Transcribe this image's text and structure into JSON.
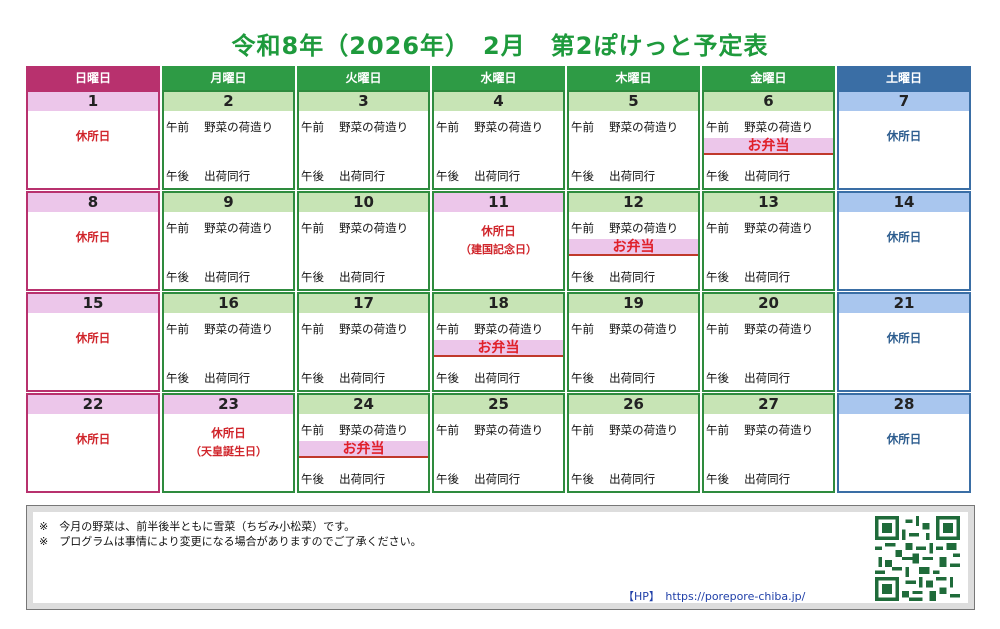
{
  "title": "令和8年（2026年）　2月　第2ぽけっと予定表",
  "headers": [
    {
      "label": "日曜日",
      "color": "#b8316e"
    },
    {
      "label": "月曜日",
      "color": "#2e9b45"
    },
    {
      "label": "火曜日",
      "color": "#2e9b45"
    },
    {
      "label": "水曜日",
      "color": "#2e9b45"
    },
    {
      "label": "木曜日",
      "color": "#2e9b45"
    },
    {
      "label": "金曜日",
      "color": "#2e9b45"
    },
    {
      "label": "土曜日",
      "color": "#3a6ea5"
    }
  ],
  "am_text": "午前　 野菜の荷造り",
  "pm_text": "午後　 出荷同行",
  "bento_text": "お弁当",
  "closed_text": "休所日",
  "weeks": [
    [
      {
        "day": "1",
        "type": "closed"
      },
      {
        "day": "2",
        "type": "work"
      },
      {
        "day": "3",
        "type": "work"
      },
      {
        "day": "4",
        "type": "work"
      },
      {
        "day": "5",
        "type": "work"
      },
      {
        "day": "6",
        "type": "work",
        "bento": true
      },
      {
        "day": "7",
        "type": "closed"
      }
    ],
    [
      {
        "day": "8",
        "type": "closed"
      },
      {
        "day": "9",
        "type": "work"
      },
      {
        "day": "10",
        "type": "work"
      },
      {
        "day": "11",
        "type": "holiday",
        "sub": "（建国記念日）"
      },
      {
        "day": "12",
        "type": "work",
        "bento": true
      },
      {
        "day": "13",
        "type": "work"
      },
      {
        "day": "14",
        "type": "closed"
      }
    ],
    [
      {
        "day": "15",
        "type": "closed"
      },
      {
        "day": "16",
        "type": "work"
      },
      {
        "day": "17",
        "type": "work"
      },
      {
        "day": "18",
        "type": "work",
        "bento": true
      },
      {
        "day": "19",
        "type": "work"
      },
      {
        "day": "20",
        "type": "work"
      },
      {
        "day": "21",
        "type": "closed"
      }
    ],
    [
      {
        "day": "22",
        "type": "closed"
      },
      {
        "day": "23",
        "type": "holiday",
        "sub": "（天皇誕生日）"
      },
      {
        "day": "24",
        "type": "work",
        "bento": true
      },
      {
        "day": "25",
        "type": "work"
      },
      {
        "day": "26",
        "type": "work"
      },
      {
        "day": "27",
        "type": "work"
      },
      {
        "day": "28",
        "type": "closed"
      }
    ]
  ],
  "notes": [
    "※　今月の野菜は、前半後半ともに雪菜（ちぢみ小松菜）です。",
    "※　プログラムは事情により変更になる場合がありますのでご了承ください。"
  ],
  "hp_text": "【HP】　https://porepore-chiba.jp/"
}
